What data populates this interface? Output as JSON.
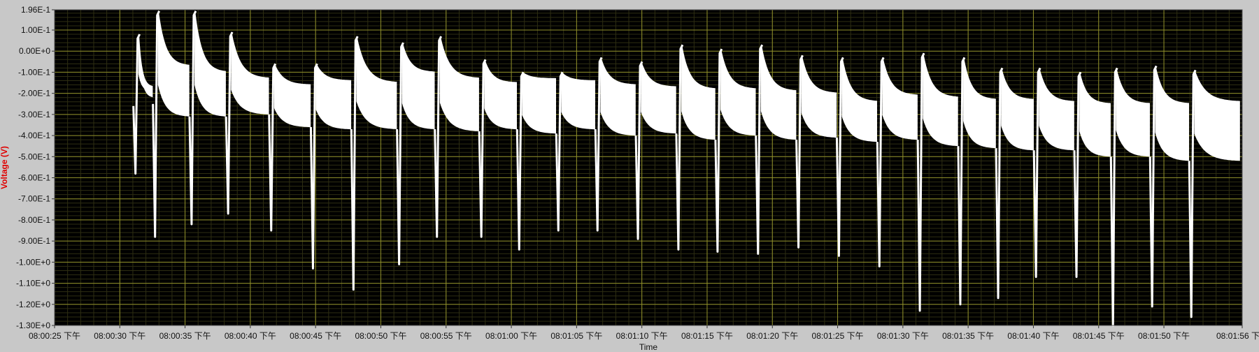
{
  "colors": {
    "frame_bg": "#c8c8c8",
    "plot_bg": "#000000",
    "major_grid": "#8f8f2a",
    "minor_grid": "#2e2e12",
    "trace": "#ffffff",
    "ylabel": "#e00000"
  },
  "chart_data": {
    "type": "line",
    "title": "",
    "xlabel": "Time",
    "ylabel": "Voltage (V)",
    "ylim": [
      -1.3,
      0.196
    ],
    "grid": true,
    "legend": "none",
    "y_ticks": [
      {
        "value": 0.196,
        "label": "1.96E-1"
      },
      {
        "value": 0.1,
        "label": "1.00E-1"
      },
      {
        "value": 0.0,
        "label": "0.00E+0"
      },
      {
        "value": -0.1,
        "label": "-1.00E-1"
      },
      {
        "value": -0.2,
        "label": "-2.00E-1"
      },
      {
        "value": -0.3,
        "label": "-3.00E-1"
      },
      {
        "value": -0.4,
        "label": "-4.00E-1"
      },
      {
        "value": -0.5,
        "label": "-5.00E-1"
      },
      {
        "value": -0.6,
        "label": "-6.00E-1"
      },
      {
        "value": -0.7,
        "label": "-7.00E-1"
      },
      {
        "value": -0.8,
        "label": "-8.00E-1"
      },
      {
        "value": -0.9,
        "label": "-9.00E-1"
      },
      {
        "value": -1.0,
        "label": "-1.00E+0"
      },
      {
        "value": -1.1,
        "label": "-1.10E+0"
      },
      {
        "value": -1.2,
        "label": "-1.20E+0"
      },
      {
        "value": -1.3,
        "label": "-1.30E+0"
      }
    ],
    "x_ticks": [
      {
        "value": "08:00:25",
        "label": "08:00:25 下午"
      },
      {
        "value": "08:00:30",
        "label": "08:00:30 下午"
      },
      {
        "value": "08:00:35",
        "label": "08:00:35 下午"
      },
      {
        "value": "08:00:40",
        "label": "08:00:40 下午"
      },
      {
        "value": "08:00:45",
        "label": "08:00:45 下午"
      },
      {
        "value": "08:00:50",
        "label": "08:00:50 下午"
      },
      {
        "value": "08:00:55",
        "label": "08:00:55 下午"
      },
      {
        "value": "08:01:00",
        "label": "08:01:00 下午"
      },
      {
        "value": "08:01:05",
        "label": "08:01:05 下午"
      },
      {
        "value": "08:01:10",
        "label": "08:01:10 下午"
      },
      {
        "value": "08:01:15",
        "label": "08:01:15 下午"
      },
      {
        "value": "08:01:20",
        "label": "08:01:20 下午"
      },
      {
        "value": "08:01:25",
        "label": "08:01:25 下午"
      },
      {
        "value": "08:01:30",
        "label": "08:01:30 下午"
      },
      {
        "value": "08:01:35",
        "label": "08:01:35 下午"
      },
      {
        "value": "08:01:40",
        "label": "08:01:40 下午"
      },
      {
        "value": "08:01:45",
        "label": "08:01:45 下午"
      },
      {
        "value": "08:01:50",
        "label": "08:01:50 下午"
      },
      {
        "value": "08:01:56",
        "label": "08:01:56 下午"
      }
    ],
    "xlim": [
      "08:00:25",
      "08:01:56"
    ],
    "series": [
      {
        "cycles": [
          {
            "t": "08:00:31.2",
            "peak": 0.08,
            "upper_end": 0.08,
            "lower_end": -0.26,
            "dip": -0.58
          },
          {
            "t": "08:00:32.7",
            "peak": 0.19,
            "upper_end": -0.17,
            "lower_end": -0.19,
            "dip": -0.88
          },
          {
            "t": "08:00:35.5",
            "peak": 0.19,
            "upper_end": -0.07,
            "lower_end": -0.31,
            "dip": -0.82
          },
          {
            "t": "08:00:38.3",
            "peak": 0.09,
            "upper_end": -0.1,
            "lower_end": -0.31,
            "dip": -0.77
          },
          {
            "t": "08:00:41.6",
            "peak": -0.06,
            "upper_end": -0.13,
            "lower_end": -0.3,
            "dip": -0.85
          },
          {
            "t": "08:00:44.8",
            "peak": -0.06,
            "upper_end": -0.16,
            "lower_end": -0.36,
            "dip": -1.03
          },
          {
            "t": "08:00:47.9",
            "peak": 0.07,
            "upper_end": -0.14,
            "lower_end": -0.37,
            "dip": -1.13
          },
          {
            "t": "08:00:51.4",
            "peak": 0.04,
            "upper_end": -0.15,
            "lower_end": -0.37,
            "dip": -1.01
          },
          {
            "t": "08:00:54.3",
            "peak": 0.07,
            "upper_end": -0.1,
            "lower_end": -0.37,
            "dip": -0.88
          },
          {
            "t": "08:00:57.7",
            "peak": -0.04,
            "upper_end": -0.13,
            "lower_end": -0.38,
            "dip": -0.88
          },
          {
            "t": "08:01:00.6",
            "peak": -0.1,
            "upper_end": -0.15,
            "lower_end": -0.37,
            "dip": -0.94
          },
          {
            "t": "08:01:03.6",
            "peak": -0.1,
            "upper_end": -0.13,
            "lower_end": -0.39,
            "dip": -0.85
          },
          {
            "t": "08:01:06.6",
            "peak": -0.03,
            "upper_end": -0.14,
            "lower_end": -0.37,
            "dip": -0.85
          },
          {
            "t": "08:01:09.7",
            "peak": -0.05,
            "upper_end": -0.16,
            "lower_end": -0.4,
            "dip": -0.89
          },
          {
            "t": "08:01:12.8",
            "peak": 0.03,
            "upper_end": -0.17,
            "lower_end": -0.39,
            "dip": -0.94
          },
          {
            "t": "08:01:15.8",
            "peak": 0.01,
            "upper_end": -0.18,
            "lower_end": -0.42,
            "dip": -0.95
          },
          {
            "t": "08:01:18.9",
            "peak": 0.03,
            "upper_end": -0.18,
            "lower_end": -0.4,
            "dip": -0.96
          },
          {
            "t": "08:01:22.0",
            "peak": -0.02,
            "upper_end": -0.19,
            "lower_end": -0.42,
            "dip": -0.93
          },
          {
            "t": "08:01:25.1",
            "peak": -0.03,
            "upper_end": -0.2,
            "lower_end": -0.41,
            "dip": -0.97
          },
          {
            "t": "08:01:28.2",
            "peak": -0.03,
            "upper_end": -0.24,
            "lower_end": -0.43,
            "dip": -1.02
          },
          {
            "t": "08:01:31.3",
            "peak": -0.01,
            "upper_end": -0.21,
            "lower_end": -0.42,
            "dip": -1.23
          },
          {
            "t": "08:01:34.4",
            "peak": -0.03,
            "upper_end": -0.22,
            "lower_end": -0.45,
            "dip": -1.2
          },
          {
            "t": "08:01:37.3",
            "peak": -0.08,
            "upper_end": -0.23,
            "lower_end": -0.46,
            "dip": -1.17
          },
          {
            "t": "08:01:40.2",
            "peak": -0.08,
            "upper_end": -0.23,
            "lower_end": -0.47,
            "dip": -1.07
          },
          {
            "t": "08:01:43.3",
            "peak": -0.1,
            "upper_end": -0.24,
            "lower_end": -0.47,
            "dip": -1.07
          },
          {
            "t": "08:01:46.1",
            "peak": -0.08,
            "upper_end": -0.25,
            "lower_end": -0.5,
            "dip": -1.3
          },
          {
            "t": "08:01:49.1",
            "peak": -0.07,
            "upper_end": -0.25,
            "lower_end": -0.5,
            "dip": -1.21
          },
          {
            "t": "08:01:52.1",
            "peak": -0.09,
            "upper_end": -0.25,
            "lower_end": -0.52,
            "dip": -1.26
          },
          {
            "t": "08:01:56.0",
            "peak": -0.24,
            "upper_end": -0.24,
            "lower_end": -0.52,
            "dip": -0.52
          }
        ]
      }
    ]
  }
}
